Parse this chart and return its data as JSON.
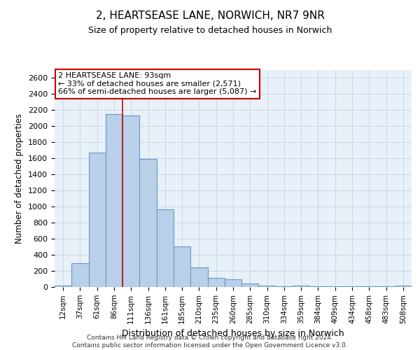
{
  "title_line1": "2, HEARTSEASE LANE, NORWICH, NR7 9NR",
  "title_line2": "Size of property relative to detached houses in Norwich",
  "xlabel": "Distribution of detached houses by size in Norwich",
  "ylabel": "Number of detached properties",
  "categories": [
    "12sqm",
    "37sqm",
    "61sqm",
    "86sqm",
    "111sqm",
    "136sqm",
    "161sqm",
    "185sqm",
    "210sqm",
    "235sqm",
    "260sqm",
    "285sqm",
    "310sqm",
    "334sqm",
    "359sqm",
    "384sqm",
    "409sqm",
    "434sqm",
    "458sqm",
    "483sqm",
    "508sqm"
  ],
  "values": [
    20,
    300,
    1670,
    2150,
    2130,
    1590,
    970,
    505,
    245,
    115,
    95,
    40,
    15,
    5,
    15,
    5,
    5,
    5,
    5,
    5,
    20
  ],
  "bar_color": "#b8d0e8",
  "bar_edge_color": "#6699cc",
  "grid_color": "#c8d8e8",
  "vline_x_index": 3,
  "annotation_text_line1": "2 HEARTSEASE LANE: 93sqm",
  "annotation_text_line2": "← 33% of detached houses are smaller (2,571)",
  "annotation_text_line3": "66% of semi-detached houses are larger (5,087) →",
  "annotation_box_facecolor": "#ffffff",
  "annotation_box_edgecolor": "#cc0000",
  "vline_color": "#cc0000",
  "ylim": [
    0,
    2700
  ],
  "yticks": [
    0,
    200,
    400,
    600,
    800,
    1000,
    1200,
    1400,
    1600,
    1800,
    2000,
    2200,
    2400,
    2600
  ],
  "footnote1": "Contains HM Land Registry data © Crown copyright and database right 2024.",
  "footnote2": "Contains public sector information licensed under the Open Government Licence v3.0.",
  "bg_color": "#e8f0f8"
}
